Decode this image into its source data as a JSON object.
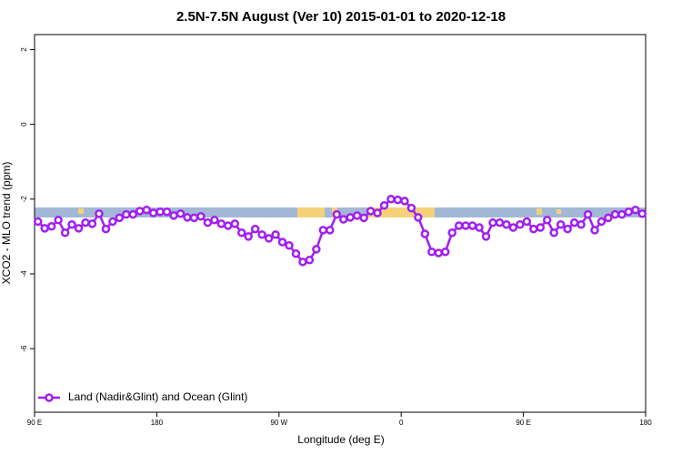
{
  "chart_data": {
    "type": "line",
    "title": "2.5N-7.5N August (Ver 10)   2015-01-01 to 2020-12-18",
    "xlabel": "Longitude (deg E)",
    "ylabel": "XCO2 - MLO trend (ppm)",
    "x": [
      92.5,
      97.5,
      102.5,
      107.5,
      112.5,
      117.5,
      122.5,
      127.5,
      132.5,
      137.5,
      142.5,
      147.5,
      152.5,
      157.5,
      162.5,
      167.5,
      172.5,
      177.5,
      182.5,
      187.5,
      192.5,
      197.5,
      202.5,
      207.5,
      212.5,
      217.5,
      222.5,
      227.5,
      232.5,
      237.5,
      242.5,
      247.5,
      252.5,
      257.5,
      262.5,
      267.5,
      272.5,
      277.5,
      282.5,
      287.5,
      292.5,
      297.5,
      302.5,
      307.5,
      312.5,
      317.5,
      322.5,
      327.5,
      332.5,
      337.5,
      342.5,
      347.5,
      352.5,
      357.5,
      362.5,
      367.5,
      372.5,
      377.5,
      382.5,
      387.5,
      392.5,
      397.5,
      402.5,
      407.5,
      412.5,
      417.5,
      422.5,
      427.5,
      432.5,
      437.5,
      442.5,
      447.5,
      452.5,
      457.5,
      462.5,
      467.5,
      472.5,
      477.5,
      482.5,
      487.5,
      492.5,
      497.5,
      502.5,
      507.5,
      512.5,
      517.5,
      522.5,
      527.5,
      532.5,
      537.5
    ],
    "series": [
      {
        "name": "Land (Nadir&Glint) and Ocean (Glint)",
        "color": "#a020f0",
        "values": [
          -2.6,
          -2.78,
          -2.73,
          -2.56,
          -2.9,
          -2.68,
          -2.78,
          -2.63,
          -2.66,
          -2.39,
          -2.8,
          -2.6,
          -2.5,
          -2.41,
          -2.41,
          -2.32,
          -2.29,
          -2.37,
          -2.34,
          -2.34,
          -2.44,
          -2.39,
          -2.49,
          -2.5,
          -2.46,
          -2.63,
          -2.56,
          -2.66,
          -2.71,
          -2.66,
          -2.9,
          -3.0,
          -2.8,
          -2.95,
          -3.05,
          -2.95,
          -3.15,
          -3.24,
          -3.46,
          -3.68,
          -3.63,
          -3.34,
          -2.83,
          -2.83,
          -2.41,
          -2.54,
          -2.49,
          -2.44,
          -2.5,
          -2.32,
          -2.37,
          -2.17,
          -2.0,
          -2.02,
          -2.05,
          -2.24,
          -2.49,
          -2.93,
          -3.41,
          -3.44,
          -3.41,
          -2.9,
          -2.71,
          -2.71,
          -2.71,
          -2.76,
          -3.0,
          -2.63,
          -2.63,
          -2.68,
          -2.76,
          -2.68,
          -2.6,
          -2.8,
          -2.76,
          -2.56,
          -2.9,
          -2.68,
          -2.8,
          -2.63,
          -2.68,
          -2.41,
          -2.83,
          -2.6,
          -2.5,
          -2.41,
          -2.41,
          -2.34,
          -2.29,
          -2.39
        ]
      }
    ],
    "xlim": [
      90,
      540
    ],
    "xticks": [
      {
        "value": 90,
        "label": "90 E"
      },
      180,
      {
        "value": 270,
        "label": "90 W"
      },
      {
        "value": 360,
        "label": "0"
      },
      {
        "value": 450,
        "label": "90 E"
      },
      {
        "value": 540,
        "label": "180"
      }
    ],
    "ylim": [
      -7.7,
      2.4
    ],
    "yticks": [
      2,
      0,
      -2,
      -4,
      -6
    ],
    "legend": "lower left"
  }
}
